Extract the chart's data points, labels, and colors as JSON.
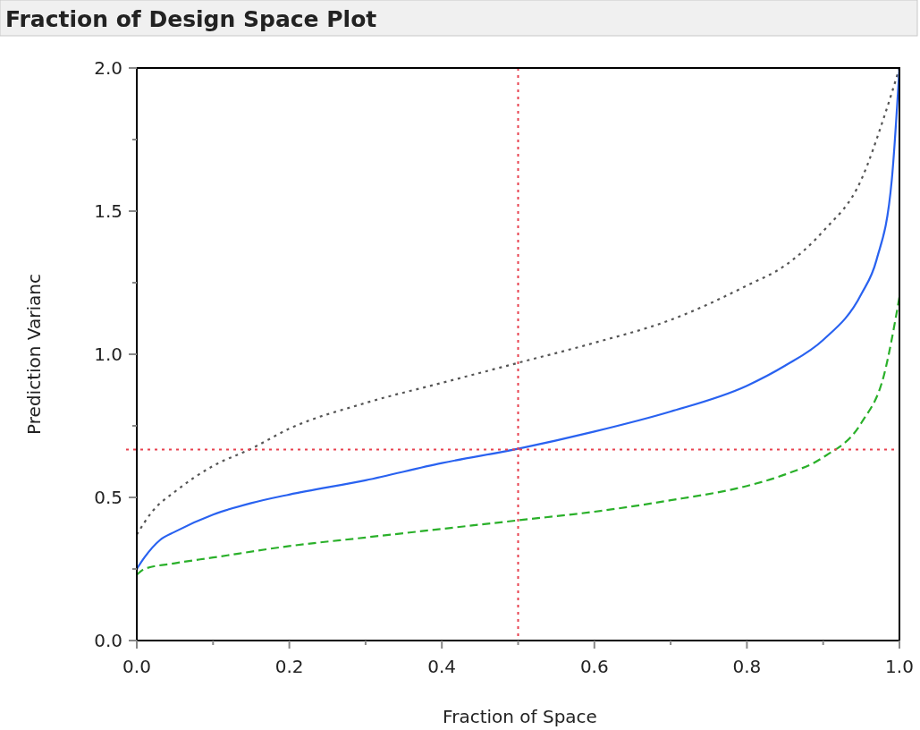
{
  "chart_data": {
    "type": "line",
    "title": "Fraction of Design Space Plot",
    "xlabel": "Fraction of Space",
    "ylabel": "Prediction Varianc",
    "xlim": [
      0,
      1
    ],
    "ylim": [
      0,
      2
    ],
    "xticks": [
      {
        "value": 0,
        "label": "0.0"
      },
      {
        "value": 0.1,
        "label": null
      },
      {
        "value": 0.2,
        "label": "0.2"
      },
      {
        "value": 0.3,
        "label": null
      },
      {
        "value": 0.4,
        "label": "0.4"
      },
      {
        "value": 0.5,
        "label": null
      },
      {
        "value": 0.6,
        "label": "0.6"
      },
      {
        "value": 0.7,
        "label": null
      },
      {
        "value": 0.8,
        "label": "0.8"
      },
      {
        "value": 0.9,
        "label": null
      },
      {
        "value": 1,
        "label": "1.0"
      }
    ],
    "yticks": [
      {
        "value": 0,
        "label": "0.0"
      },
      {
        "value": 0.25,
        "label": null
      },
      {
        "value": 0.5,
        "label": "0.5"
      },
      {
        "value": 0.75,
        "label": null
      },
      {
        "value": 1,
        "label": "1.0"
      },
      {
        "value": 1.25,
        "label": null
      },
      {
        "value": 1.5,
        "label": "1.5"
      },
      {
        "value": 1.75,
        "label": null
      },
      {
        "value": 2,
        "label": "2.0"
      }
    ],
    "grid": false,
    "series": [
      {
        "color": "#555555",
        "line_style": "dotted",
        "x": [
          0,
          0.02,
          0.05,
          0.1,
          0.15,
          0.2,
          0.3,
          0.4,
          0.5,
          0.6,
          0.7,
          0.8,
          0.85,
          0.9,
          0.95,
          0.98,
          1
        ],
        "values": [
          0.37,
          0.45,
          0.52,
          0.61,
          0.67,
          0.74,
          0.83,
          0.9,
          0.97,
          1.04,
          1.12,
          1.24,
          1.31,
          1.43,
          1.61,
          1.83,
          2.0
        ]
      },
      {
        "color": "#2962f0",
        "line_style": "solid",
        "x": [
          0,
          0.01,
          0.03,
          0.05,
          0.1,
          0.15,
          0.2,
          0.3,
          0.4,
          0.5,
          0.6,
          0.7,
          0.8,
          0.85,
          0.9,
          0.95,
          0.97,
          0.99,
          1
        ],
        "values": [
          0.25,
          0.29,
          0.35,
          0.38,
          0.44,
          0.48,
          0.51,
          0.56,
          0.62,
          0.67,
          0.73,
          0.8,
          0.89,
          0.96,
          1.05,
          1.21,
          1.33,
          1.61,
          2.0
        ]
      },
      {
        "color": "#2ab02a",
        "line_style": "dashed",
        "x": [
          0,
          0.01,
          0.05,
          0.1,
          0.2,
          0.3,
          0.4,
          0.5,
          0.6,
          0.7,
          0.8,
          0.85,
          0.9,
          0.95,
          0.98,
          1
        ],
        "values": [
          0.23,
          0.25,
          0.27,
          0.29,
          0.33,
          0.36,
          0.39,
          0.42,
          0.45,
          0.49,
          0.54,
          0.58,
          0.64,
          0.76,
          0.93,
          1.2
        ]
      }
    ],
    "ref_lines": [
      {
        "axis": "x",
        "value": 0.5,
        "color": "#e8414f",
        "line_style": "dotted"
      },
      {
        "axis": "y",
        "value": 0.667,
        "color": "#e8414f",
        "line_style": "dotted"
      }
    ]
  }
}
